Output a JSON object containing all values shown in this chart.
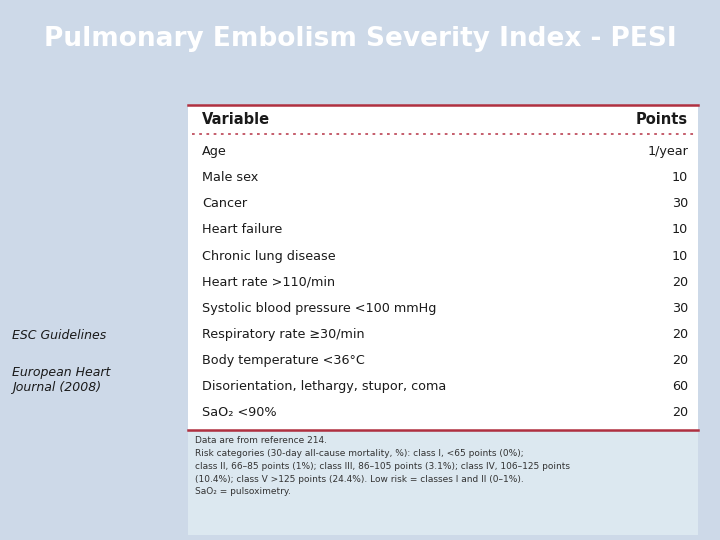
{
  "title": "Pulmonary Embolism Severity Index - PESI",
  "title_bg": "#5b82ab",
  "title_color": "#ffffff",
  "bg_color": "#cdd9e8",
  "table_bg": "#ffffff",
  "table_border_top_color": "#b03040",
  "table_border_bottom_color": "#b03040",
  "table_dot_color": "#c05060",
  "header_variable": "Variable",
  "header_points": "Points",
  "rows": [
    [
      "Age",
      "1/year"
    ],
    [
      "Male sex",
      "10"
    ],
    [
      "Cancer",
      "30"
    ],
    [
      "Heart failure",
      "10"
    ],
    [
      "Chronic lung disease",
      "10"
    ],
    [
      "Heart rate >110/min",
      "20"
    ],
    [
      "Systolic blood pressure <100 mmHg",
      "30"
    ],
    [
      "Respiratory rate ≥30/min",
      "20"
    ],
    [
      "Body temperature <36°C",
      "20"
    ],
    [
      "Disorientation, lethargy, stupor, coma",
      "60"
    ],
    [
      "SaO₂ <90%",
      "20"
    ]
  ],
  "left_label1": "ESC Guidelines",
  "left_label2": "European Heart\nJournal (2008)",
  "footnote_text": "Data are from reference 214.\nRisk categories (30-day all-cause mortality, %): class I, <65 points (0%);\nclass II, 66–85 points (1%); class III, 86–105 points (3.1%); class IV, 106–125 points\n(10.4%); class V >125 points (24.4%). Low risk = classes I and II (0–1%).\nSaO₂ = pulsoximetry."
}
